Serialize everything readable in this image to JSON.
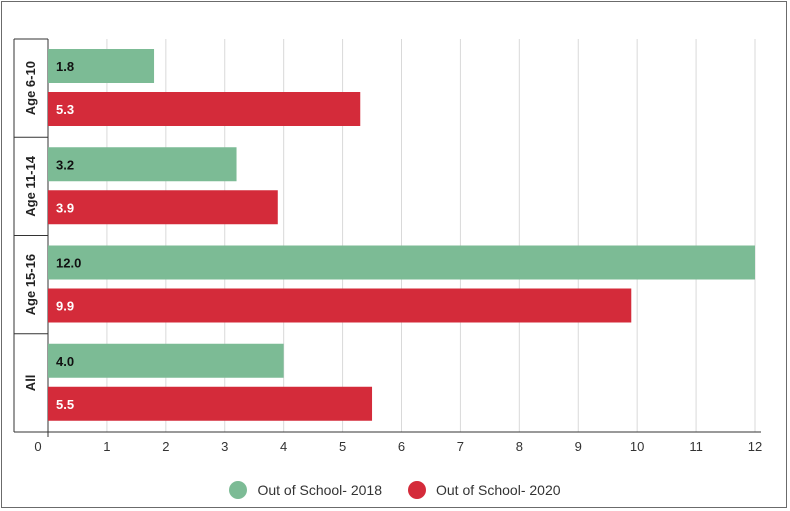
{
  "colors": {
    "series_2018": "#7cbb95",
    "series_2020": "#d42b3a",
    "grid": "#d9d9d9",
    "axis": "#333333"
  },
  "chart_data": {
    "type": "bar",
    "orientation": "horizontal",
    "categories": [
      "Age 6-10",
      "Age 11-14",
      "Age 15-16",
      "All"
    ],
    "series": [
      {
        "name": "Out of School- 2018",
        "values": [
          1.8,
          3.2,
          12.0,
          4.0
        ],
        "labels": [
          "1.8",
          "3.2",
          "12.0",
          "4.0"
        ]
      },
      {
        "name": "Out of School- 2020",
        "values": [
          5.3,
          3.9,
          9.9,
          5.5
        ],
        "labels": [
          "5.3",
          "3.9",
          "9.9",
          "5.5"
        ]
      }
    ],
    "x_ticks": [
      "0",
      "1",
      "2",
      "3",
      "4",
      "5",
      "6",
      "7",
      "8",
      "9",
      "10",
      "11",
      "12"
    ],
    "xlim": [
      0,
      12
    ],
    "grid": true,
    "legend_position": "bottom"
  }
}
